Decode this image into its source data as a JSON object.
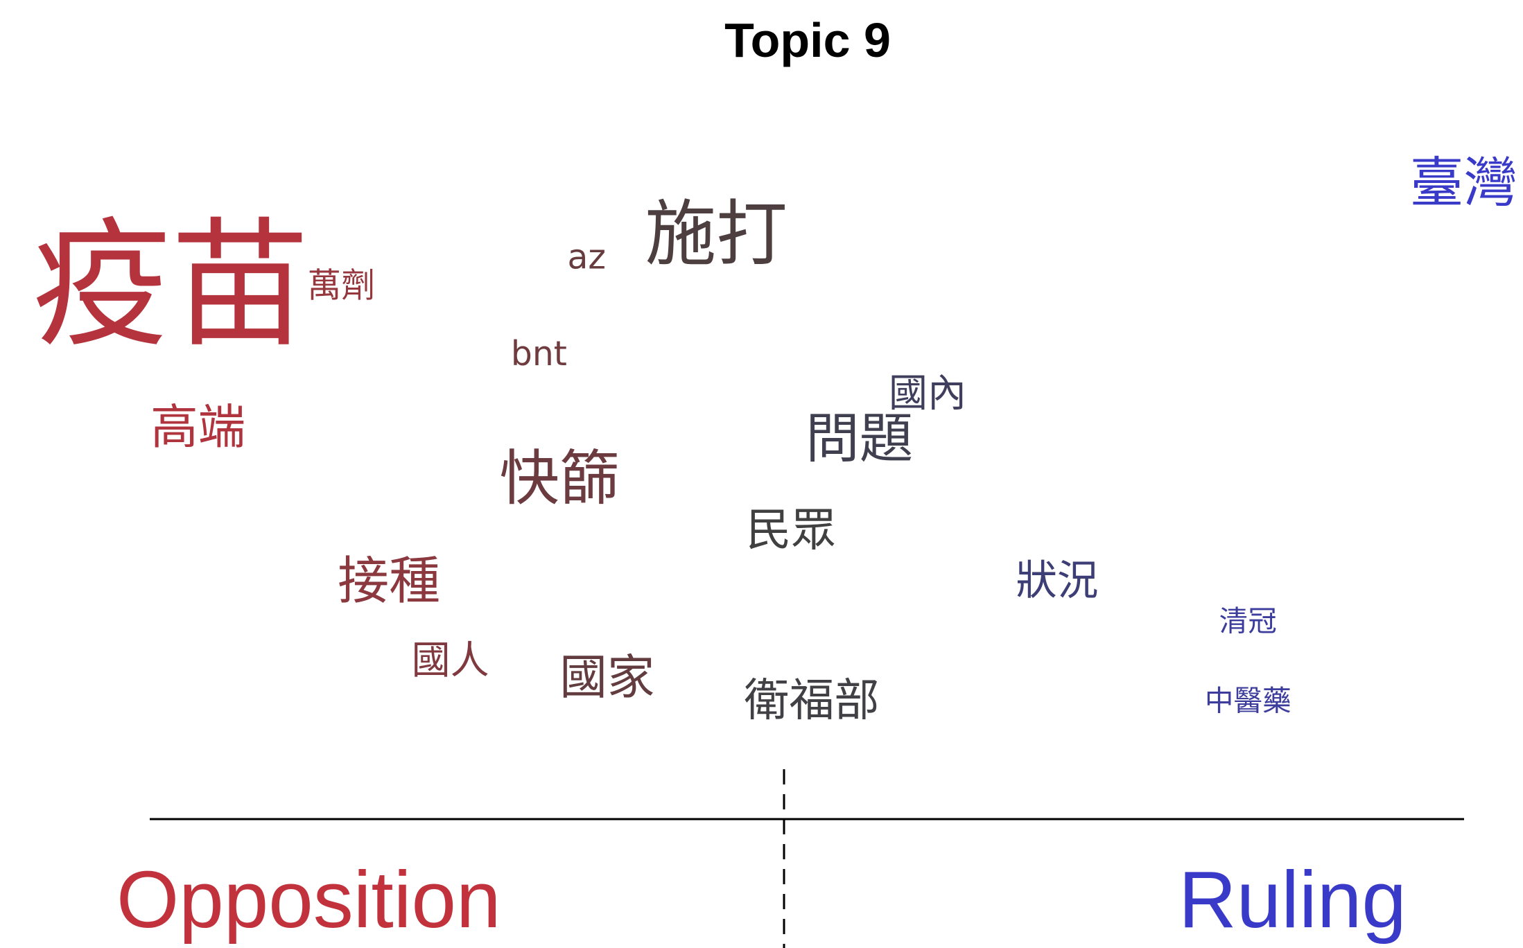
{
  "chart_data": {
    "type": "scatter",
    "title": "Topic 9",
    "xlabel": "",
    "ylabel": "",
    "xlim": [
      -1,
      1
    ],
    "ylim": [
      0,
      1
    ],
    "grid": false,
    "legend": "none",
    "axis_labels": {
      "left": "Opposition",
      "right": "Ruling"
    },
    "colors": {
      "opposition": "#C2323C",
      "ruling": "#3A3AC8",
      "neutral": "#404040"
    },
    "points": [
      {
        "label": "疫苗",
        "x": -0.9,
        "y": 0.79,
        "weight": 1.0
      },
      {
        "label": "萬劑",
        "x": -0.65,
        "y": 0.79,
        "weight": 0.16
      },
      {
        "label": "az",
        "x": -0.29,
        "y": 0.84,
        "weight": 0.16
      },
      {
        "label": "施打",
        "x": -0.1,
        "y": 0.88,
        "weight": 0.46
      },
      {
        "label": "臺灣",
        "x": 1.03,
        "y": 0.97,
        "weight": 0.32
      },
      {
        "label": "bnt",
        "x": -0.36,
        "y": 0.67,
        "weight": 0.16
      },
      {
        "label": "高端",
        "x": -0.86,
        "y": 0.54,
        "weight": 0.27
      },
      {
        "label": "國內",
        "x": 0.21,
        "y": 0.6,
        "weight": 0.2
      },
      {
        "label": "問題",
        "x": 0.11,
        "y": 0.52,
        "weight": 0.32
      },
      {
        "label": "快篩",
        "x": -0.33,
        "y": 0.45,
        "weight": 0.37
      },
      {
        "label": "民眾",
        "x": 0.01,
        "y": 0.36,
        "weight": 0.25
      },
      {
        "label": "接種",
        "x": -0.58,
        "y": 0.27,
        "weight": 0.3
      },
      {
        "label": "狀況",
        "x": 0.4,
        "y": 0.27,
        "weight": 0.22
      },
      {
        "label": "清冠",
        "x": 0.68,
        "y": 0.2,
        "weight": 0.12
      },
      {
        "label": "國人",
        "x": -0.49,
        "y": 0.13,
        "weight": 0.2
      },
      {
        "label": "國家",
        "x": -0.26,
        "y": 0.1,
        "weight": 0.27
      },
      {
        "label": "衛福部",
        "x": 0.04,
        "y": 0.06,
        "weight": 0.25
      },
      {
        "label": "中醫藥",
        "x": 0.68,
        "y": 0.06,
        "weight": 0.12
      }
    ]
  }
}
